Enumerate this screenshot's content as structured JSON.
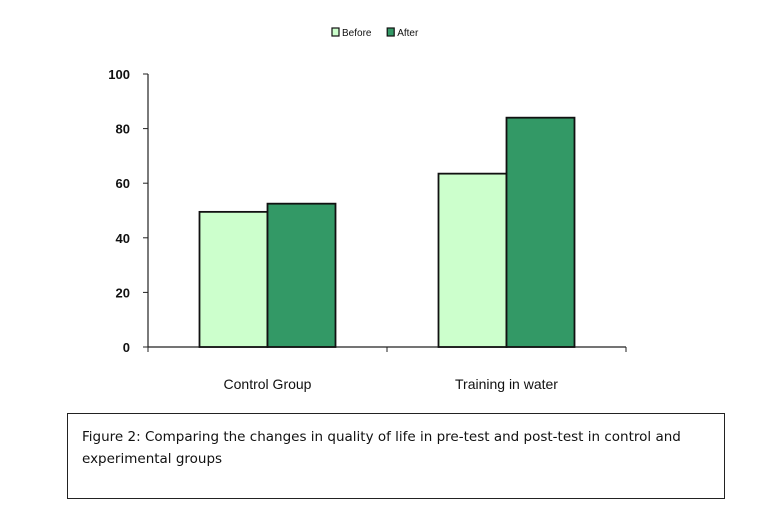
{
  "chart_data": {
    "type": "bar",
    "categories": [
      "Control Group",
      "Training in water"
    ],
    "series": [
      {
        "name": "Before",
        "values": [
          49.5,
          63.5
        ],
        "color": "#ccffcc"
      },
      {
        "name": "After",
        "values": [
          52.5,
          84
        ],
        "color": "#339966"
      }
    ],
    "ylim": [
      0,
      100
    ],
    "yticks": [
      0,
      20,
      40,
      60,
      80,
      100
    ],
    "legend_position": "top-center",
    "grid": false
  },
  "caption": "Figure 2: Comparing the changes in quality of life in pre-test and post-test in control and experimental groups"
}
